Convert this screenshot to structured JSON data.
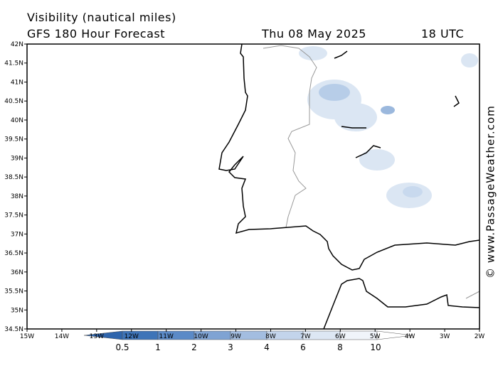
{
  "header": {
    "title": "Visibility (nautical miles)",
    "model": "GFS 180 Hour Forecast",
    "date": "Thu 08 May 2025",
    "time": "18 UTC"
  },
  "map": {
    "lat_labels": [
      "42N",
      "41.5N",
      "41N",
      "40.5N",
      "40N",
      "39.5N",
      "39N",
      "38.5N",
      "38N",
      "37.5N",
      "37N",
      "36.5N",
      "36N",
      "35.5N",
      "35N",
      "34.5N"
    ],
    "lon_labels": [
      "15W",
      "14W",
      "13W",
      "12W",
      "11W",
      "10W",
      "9W",
      "8W",
      "7W",
      "6W",
      "5W",
      "4W",
      "3W",
      "2W"
    ]
  },
  "legend": {
    "labels": [
      "0.5",
      "1",
      "2",
      "3",
      "4",
      "6",
      "8",
      "10"
    ]
  },
  "credit": "© www.PassageWeather.com"
}
